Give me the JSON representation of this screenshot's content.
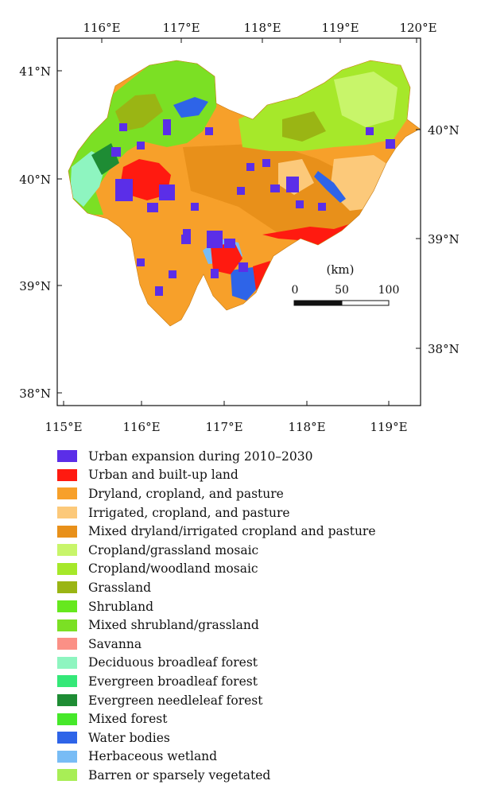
{
  "map": {
    "top_lon_ticks": [
      "116°E",
      "117°E",
      "118°E",
      "119°E",
      "120°E"
    ],
    "bottom_lon_ticks": [
      "115°E",
      "116°E",
      "117°E",
      "118°E",
      "119°E"
    ],
    "left_lat_ticks": [
      "41°N",
      "40°N",
      "39°N",
      "38°N"
    ],
    "right_lat_ticks": [
      "40°N",
      "39°N",
      "38°N"
    ],
    "scale_bar": {
      "unit": "(km)",
      "labels": [
        "0",
        "50",
        "100"
      ]
    }
  },
  "legend": {
    "items": [
      {
        "label": "Urban expansion during 2010–2030",
        "color": "#5b2ee8"
      },
      {
        "label": "Urban and built-up land",
        "color": "#ff1a10"
      },
      {
        "label": "Dryland, cropland, and pasture",
        "color": "#f7a02a"
      },
      {
        "label": "Irrigated, cropland, and pasture",
        "color": "#fcc97a"
      },
      {
        "label": "Mixed dryland/irrigated cropland and pasture",
        "color": "#e8901a"
      },
      {
        "label": "Cropland/grassland mosaic",
        "color": "#c8f56a"
      },
      {
        "label": "Cropland/woodland mosaic",
        "color": "#a6e82a"
      },
      {
        "label": "Grassland",
        "color": "#9ab514"
      },
      {
        "label": "Shrubland",
        "color": "#66e81e"
      },
      {
        "label": "Mixed shrubland/grassland",
        "color": "#7be024"
      },
      {
        "label": "Savanna",
        "color": "#fb9086"
      },
      {
        "label": "Deciduous broadleaf forest",
        "color": "#8ef5c0"
      },
      {
        "label": "Evergreen broadleaf forest",
        "color": "#34e878"
      },
      {
        "label": "Evergreen needleleaf forest",
        "color": "#1e8c34"
      },
      {
        "label": "Mixed forest",
        "color": "#46e82a"
      },
      {
        "label": "Water bodies",
        "color": "#2e64e8"
      },
      {
        "label": "Herbaceous wetland",
        "color": "#78bcf5"
      },
      {
        "label": "Barren or sparsely vegetated",
        "color": "#a8ee56"
      }
    ]
  }
}
